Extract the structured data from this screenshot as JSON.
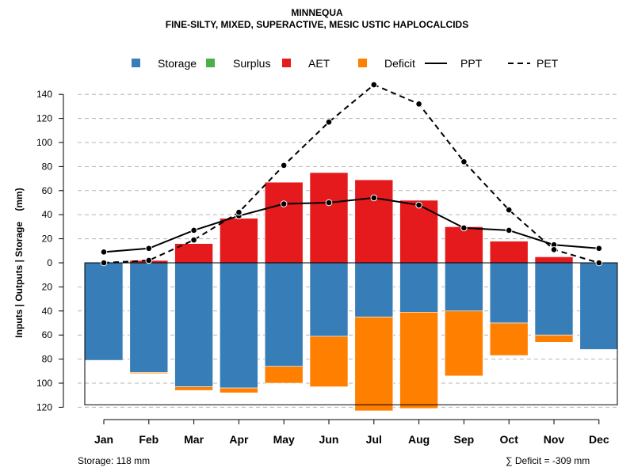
{
  "chart_data": {
    "type": "bar",
    "title": [
      "MINNEQUA",
      "FINE-SILTY, MIXED, SUPERACTIVE, MESIC USTIC HAPLOCALCIDS"
    ],
    "ylabel": "Inputs | Outputs | Storage    (mm)",
    "xlabel": "",
    "categories": [
      "Jan",
      "Feb",
      "Mar",
      "Apr",
      "May",
      "Jun",
      "Jul",
      "Aug",
      "Sep",
      "Oct",
      "Nov",
      "Dec"
    ],
    "ylim": [
      -120,
      150
    ],
    "yticks": [
      -120,
      -100,
      -80,
      -60,
      -40,
      -20,
      0,
      20,
      40,
      60,
      80,
      100,
      120,
      140
    ],
    "ytick_labels": [
      "120",
      "100",
      "80",
      "60",
      "40",
      "20",
      "0",
      "20",
      "40",
      "60",
      "80",
      "100",
      "120",
      "140"
    ],
    "grid": true,
    "legend": {
      "placement": "top",
      "entries": [
        {
          "label": "Storage",
          "kind": "box",
          "color": "#377EB8"
        },
        {
          "label": "Surplus",
          "kind": "box",
          "color": "#4DAF4A"
        },
        {
          "label": "AET",
          "kind": "box",
          "color": "#E41A1C"
        },
        {
          "label": "Deficit",
          "kind": "box",
          "color": "#FF7F00"
        },
        {
          "label": "PPT",
          "kind": "line",
          "dash": false
        },
        {
          "label": "PET",
          "kind": "line",
          "dash": true
        }
      ]
    },
    "series": [
      {
        "name": "AET",
        "color": "#E41A1C",
        "values": [
          0,
          2,
          16,
          37,
          67,
          75,
          69,
          52,
          30,
          18,
          5,
          0
        ]
      },
      {
        "name": "Surplus",
        "color": "#4DAF4A",
        "values": [
          0,
          0,
          0,
          0,
          0,
          0,
          0,
          0,
          0,
          0,
          0,
          0
        ]
      },
      {
        "name": "Storage",
        "color": "#377EB8",
        "values": [
          -81,
          -91,
          -103,
          -104,
          -86,
          -61,
          -45,
          -41,
          -40,
          -50,
          -60,
          -72
        ]
      },
      {
        "name": "Deficit",
        "color": "#FF7F00",
        "values": [
          0,
          -1,
          -3,
          -4,
          -14,
          -42,
          -78,
          -80,
          -54,
          -27,
          -6,
          0
        ]
      },
      {
        "name": "PPT",
        "color": "#000000",
        "values": [
          9,
          12,
          27,
          39,
          49,
          50,
          54,
          48,
          29,
          27,
          15,
          12
        ]
      },
      {
        "name": "PET",
        "color": "#000000",
        "dash": true,
        "values": [
          0,
          2,
          19,
          42,
          81,
          117,
          148,
          132,
          84,
          44,
          11,
          0
        ]
      }
    ],
    "storage_capacity": -118
  },
  "notes": {
    "storage": "Storage: 118 mm",
    "deficit": "∑ Deficit = -309 mm"
  }
}
